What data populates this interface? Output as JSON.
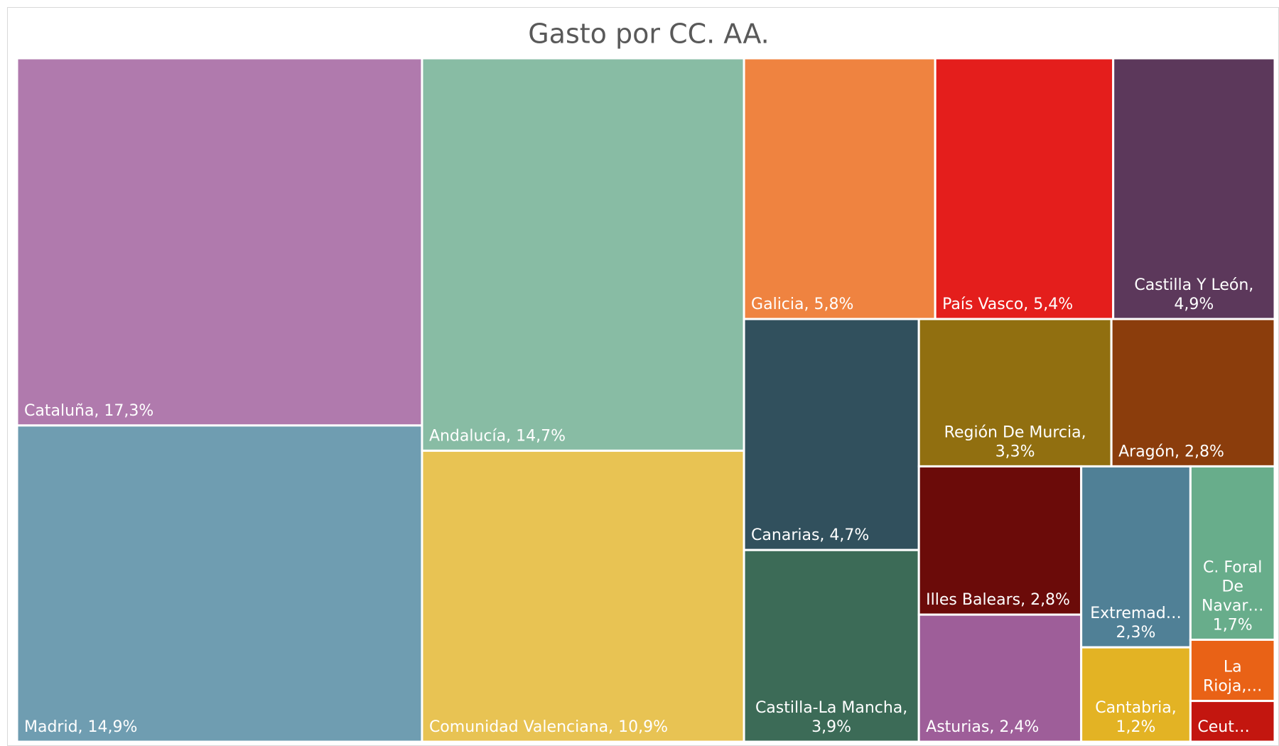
{
  "chart_data": {
    "type": "treemap",
    "title": "Gasto por CC. AA.",
    "values": [
      17.3,
      14.9,
      14.7,
      10.9,
      5.8,
      5.4,
      4.9,
      4.7,
      3.9,
      3.3,
      2.8,
      2.8,
      2.4,
      2.3,
      1.2,
      1.7,
      0.6,
      0.4
    ],
    "value_labels": [
      "Cataluña, 17,3%",
      "Madrid, 14,9%",
      "Andalucía, 14,7%",
      "Comunidad Valenciana, 10,9%",
      "Galicia, 5,8%",
      "País Vasco, 5,4%",
      "Castilla Y León, 4,9%",
      "Canarias, 4,7%",
      "Castilla-La Mancha, 3,9%",
      "Región De Murcia, 3,3%",
      "Aragón, 2,8%",
      "Illes Balears, 2,8%",
      "Asturias, 2,4%",
      "Extremad… 2,3%",
      "Cantabria, 1,2%",
      "C. Foral De Navar… 1,7%",
      "La Rioja,…",
      "Ceut…"
    ],
    "colors": [
      "#b07aad",
      "#6f9db1",
      "#88bca4",
      "#e8c353",
      "#ef8340",
      "#e41e1c",
      "#5c385b",
      "#31505d",
      "#3c6b57",
      "#916f10",
      "#8b3d0c",
      "#6b0b09",
      "#9e5e99",
      "#508096",
      "#e3b324",
      "#68ad8b",
      "#e96216",
      "#c3160f"
    ]
  }
}
